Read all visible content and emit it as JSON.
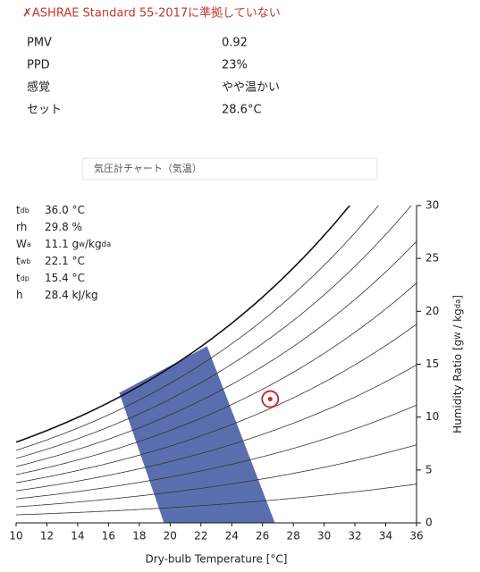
{
  "header": {
    "warning": "✗ASHRAE Standard 55-2017に準拠していない"
  },
  "results": [
    [
      "PMV",
      "0.92"
    ],
    [
      "PPD",
      "23%"
    ],
    [
      "感覚",
      "やや温かい"
    ],
    [
      "セット",
      "28.6°C"
    ]
  ],
  "tab": "気圧計チャート（気温）",
  "info": [
    {
      "label": "t",
      "label_sub": "db",
      "value": [
        "36.0 °C"
      ]
    },
    {
      "label": "rh",
      "label_sub": "",
      "value": [
        "29.8 %"
      ]
    },
    {
      "label": "W",
      "label_sub": "a",
      "value": [
        "11.1 g",
        "w",
        "/kg",
        "da"
      ]
    },
    {
      "label": "t",
      "label_sub": "wb",
      "value": [
        "22.1 °C"
      ]
    },
    {
      "label": "t",
      "label_sub": "dp",
      "value": [
        "15.4 °C"
      ]
    },
    {
      "label": "h",
      "label_sub": "",
      "value": [
        "28.4 kJ/kg"
      ]
    }
  ],
  "chart_data": {
    "type": "psychrometric",
    "xlabel": "Dry-bulb Temperature [°C]",
    "ylabel": [
      "Humidity Ratio [g",
      "W",
      " / kg",
      "da",
      "]"
    ],
    "xlim": [
      10,
      36
    ],
    "xticks": [
      10,
      12,
      14,
      16,
      18,
      20,
      22,
      24,
      26,
      28,
      30,
      32,
      34,
      36
    ],
    "ylim": [
      0,
      30
    ],
    "yticks": [
      0,
      5,
      10,
      15,
      20,
      25,
      30
    ],
    "rh_lines": [
      100,
      90,
      80,
      70,
      60,
      50,
      40,
      30,
      20,
      10
    ],
    "comfort_zone": {
      "color": "#5a6eae",
      "x": [
        16.7,
        22.4,
        26.8,
        19.6
      ],
      "y": [
        12.3,
        16.7,
        0,
        0
      ]
    },
    "point": {
      "x": 26.5,
      "y": 11.7,
      "color": "#c62828"
    }
  }
}
